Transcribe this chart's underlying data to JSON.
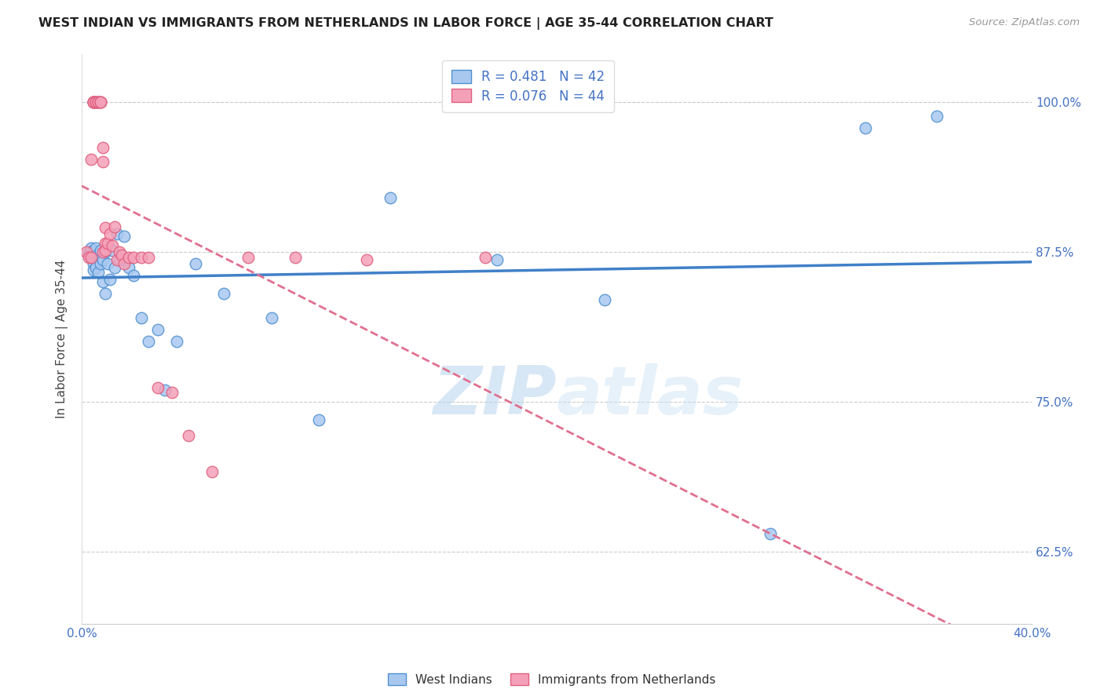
{
  "title": "WEST INDIAN VS IMMIGRANTS FROM NETHERLANDS IN LABOR FORCE | AGE 35-44 CORRELATION CHART",
  "source": "Source: ZipAtlas.com",
  "ylabel": "In Labor Force | Age 35-44",
  "xlim": [
    0.0,
    0.4
  ],
  "ylim": [
    0.565,
    1.04
  ],
  "xticks": [
    0.0,
    0.05,
    0.1,
    0.15,
    0.2,
    0.25,
    0.3,
    0.35,
    0.4
  ],
  "xticklabels": [
    "0.0%",
    "",
    "",
    "",
    "",
    "",
    "",
    "",
    "40.0%"
  ],
  "yticks": [
    0.625,
    0.75,
    0.875,
    1.0
  ],
  "yticklabels": [
    "62.5%",
    "75.0%",
    "87.5%",
    "100.0%"
  ],
  "blue_r": 0.481,
  "blue_n": 42,
  "pink_r": 0.076,
  "pink_n": 44,
  "blue_color": "#A8C8F0",
  "pink_color": "#F4A0B8",
  "blue_edge_color": "#5090D0",
  "pink_edge_color": "#E06080",
  "blue_line_color": "#4080C8",
  "pink_line_color": "#E07090",
  "legend_blue_label": "R = 0.481   N = 42",
  "legend_pink_label": "R = 0.076   N = 44",
  "west_indians_x": [
    0.003,
    0.003,
    0.004,
    0.004,
    0.005,
    0.005,
    0.005,
    0.005,
    0.006,
    0.006,
    0.007,
    0.007,
    0.008,
    0.008,
    0.009,
    0.009,
    0.01,
    0.01,
    0.011,
    0.012,
    0.013,
    0.014,
    0.015,
    0.016,
    0.018,
    0.02,
    0.022,
    0.025,
    0.028,
    0.032,
    0.035,
    0.04,
    0.048,
    0.06,
    0.08,
    0.1,
    0.13,
    0.175,
    0.22,
    0.29,
    0.33,
    0.36
  ],
  "west_indians_y": [
    0.875,
    0.872,
    0.878,
    0.87,
    0.876,
    0.87,
    0.865,
    0.86,
    0.878,
    0.862,
    0.873,
    0.858,
    0.876,
    0.865,
    0.868,
    0.85,
    0.875,
    0.84,
    0.865,
    0.852,
    0.876,
    0.862,
    0.89,
    0.868,
    0.888,
    0.862,
    0.855,
    0.82,
    0.8,
    0.81,
    0.76,
    0.8,
    0.865,
    0.84,
    0.82,
    0.735,
    0.92,
    0.868,
    0.835,
    0.64,
    0.978,
    0.988
  ],
  "netherlands_x": [
    0.002,
    0.003,
    0.004,
    0.004,
    0.005,
    0.005,
    0.005,
    0.005,
    0.005,
    0.006,
    0.006,
    0.006,
    0.007,
    0.007,
    0.007,
    0.008,
    0.008,
    0.008,
    0.009,
    0.009,
    0.009,
    0.01,
    0.01,
    0.01,
    0.011,
    0.012,
    0.013,
    0.014,
    0.015,
    0.016,
    0.017,
    0.018,
    0.02,
    0.022,
    0.025,
    0.028,
    0.032,
    0.038,
    0.045,
    0.055,
    0.07,
    0.09,
    0.12,
    0.17
  ],
  "netherlands_y": [
    0.875,
    0.87,
    0.952,
    0.87,
    1.0,
    1.0,
    1.0,
    1.0,
    1.0,
    1.0,
    1.0,
    1.0,
    1.0,
    1.0,
    1.0,
    1.0,
    1.0,
    1.0,
    0.962,
    0.95,
    0.875,
    0.895,
    0.882,
    0.876,
    0.882,
    0.89,
    0.88,
    0.896,
    0.868,
    0.875,
    0.872,
    0.865,
    0.87,
    0.87,
    0.87,
    0.87,
    0.762,
    0.758,
    0.722,
    0.692,
    0.87,
    0.87,
    0.868,
    0.87
  ],
  "watermark_zip": "ZIP",
  "watermark_atlas": "atlas",
  "background_color": "#FFFFFF",
  "grid_color": "#CCCCCC"
}
